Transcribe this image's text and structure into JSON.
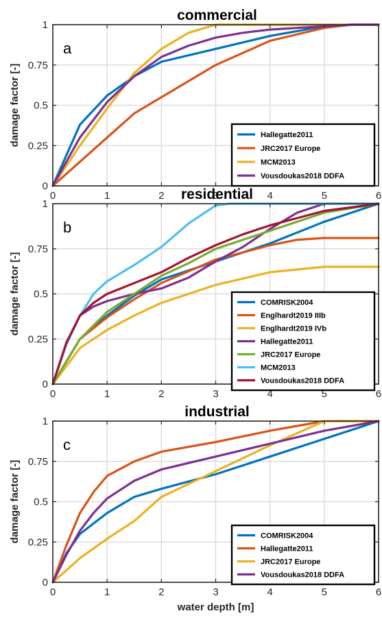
{
  "chart_data": [
    {
      "type": "line",
      "panel_label": "a",
      "title": "commercial",
      "ylabel": "damage factor [-]",
      "xlabel": "",
      "xlim": [
        0,
        6
      ],
      "ylim": [
        0,
        1
      ],
      "xticks": [
        "0",
        "1",
        "2",
        "3",
        "4",
        "5",
        "6"
      ],
      "yticks": [
        "0",
        "0.25",
        "0.5",
        "0.75",
        "1"
      ],
      "grid": true,
      "legend_position": "bottom-right",
      "series": [
        {
          "name": "Hallegatte2011",
          "color": "#0072BD",
          "x": [
            0,
            0.5,
            1,
            1.5,
            2,
            3,
            4,
            5,
            5.5,
            6
          ],
          "y": [
            0,
            0.38,
            0.56,
            0.68,
            0.77,
            0.85,
            0.93,
            0.99,
            1,
            1
          ]
        },
        {
          "name": "JRC2017 Europe",
          "color": "#D95319",
          "x": [
            0,
            0.5,
            1,
            1.5,
            2,
            2.5,
            3,
            4,
            5,
            5.5,
            6
          ],
          "y": [
            0,
            0.15,
            0.3,
            0.45,
            0.55,
            0.65,
            0.75,
            0.9,
            0.98,
            1,
            1
          ]
        },
        {
          "name": "MCM2013",
          "color": "#EDB120",
          "x": [
            0,
            0.5,
            1,
            1.5,
            2,
            2.5,
            3,
            3.5,
            4,
            5,
            6
          ],
          "y": [
            0,
            0.25,
            0.48,
            0.7,
            0.85,
            0.95,
            1,
            1,
            1,
            1,
            1
          ]
        },
        {
          "name": "Vousdoukas2018 DDFA",
          "color": "#7E2F8E",
          "x": [
            0,
            0.5,
            1,
            1.5,
            2,
            2.5,
            3,
            3.5,
            4,
            4.5,
            5,
            5.5,
            6
          ],
          "y": [
            0,
            0.3,
            0.52,
            0.68,
            0.8,
            0.87,
            0.92,
            0.95,
            0.97,
            0.98,
            0.99,
            1,
            1
          ]
        }
      ]
    },
    {
      "type": "line",
      "panel_label": "b",
      "title": "residential",
      "ylabel": "damage factor [-]",
      "xlabel": "",
      "xlim": [
        0,
        6
      ],
      "ylim": [
        0,
        1
      ],
      "xticks": [
        "0",
        "1",
        "2",
        "3",
        "4",
        "5",
        "6"
      ],
      "yticks": [
        "0",
        "0.25",
        "0.5",
        "0.75",
        "1"
      ],
      "grid": true,
      "legend_position": "bottom-right",
      "series": [
        {
          "name": "COMRISK2004",
          "color": "#0072BD",
          "x": [
            0,
            0.5,
            1,
            1.5,
            2,
            3,
            4,
            5,
            6
          ],
          "y": [
            0,
            0.25,
            0.38,
            0.49,
            0.58,
            0.68,
            0.78,
            0.9,
            1
          ]
        },
        {
          "name": "Englhardt2019 IIIb",
          "color": "#D95319",
          "x": [
            0,
            0.5,
            1,
            1.5,
            2,
            3,
            4,
            4.5,
            5,
            5.5,
            6
          ],
          "y": [
            0,
            0.25,
            0.37,
            0.47,
            0.56,
            0.69,
            0.77,
            0.8,
            0.81,
            0.81,
            0.81
          ]
        },
        {
          "name": "Englhardt2019 IVb",
          "color": "#EDB120",
          "x": [
            0,
            0.5,
            1,
            1.5,
            2,
            3,
            4,
            5,
            5.5,
            6
          ],
          "y": [
            0,
            0.2,
            0.3,
            0.38,
            0.45,
            0.55,
            0.62,
            0.65,
            0.65,
            0.65
          ]
        },
        {
          "name": "Hallegatte2011",
          "color": "#7E2F8E",
          "x": [
            0,
            0.25,
            0.5,
            0.75,
            1,
            1.5,
            2,
            2.5,
            3,
            3.5,
            4,
            4.5,
            5,
            5.5,
            6
          ],
          "y": [
            0,
            0.22,
            0.38,
            0.43,
            0.46,
            0.5,
            0.53,
            0.59,
            0.68,
            0.76,
            0.86,
            0.95,
            1,
            1,
            1
          ]
        },
        {
          "name": "JRC2017 Europe",
          "color": "#77AC30",
          "x": [
            0,
            0.5,
            1,
            1.5,
            2,
            2.5,
            3,
            4,
            5,
            6
          ],
          "y": [
            0,
            0.25,
            0.4,
            0.5,
            0.6,
            0.67,
            0.75,
            0.85,
            0.95,
            1
          ]
        },
        {
          "name": "MCM2013",
          "color": "#4DBEEE",
          "x": [
            0,
            0.25,
            0.5,
            0.75,
            1,
            1.5,
            2,
            2.5,
            3,
            3.25,
            4,
            5,
            6
          ],
          "y": [
            0,
            0.22,
            0.38,
            0.5,
            0.57,
            0.66,
            0.76,
            0.89,
            0.99,
            1,
            1,
            1,
            1
          ]
        },
        {
          "name": "Vousdoukas2018 DDFA",
          "color": "#A2142F",
          "x": [
            0,
            0.25,
            0.5,
            0.75,
            1,
            1.5,
            2,
            2.5,
            3,
            3.5,
            4,
            4.5,
            5,
            5.5,
            6
          ],
          "y": [
            0,
            0.23,
            0.38,
            0.45,
            0.5,
            0.56,
            0.62,
            0.7,
            0.77,
            0.83,
            0.88,
            0.92,
            0.96,
            0.98,
            1
          ]
        }
      ]
    },
    {
      "type": "line",
      "panel_label": "c",
      "title": "industrial",
      "ylabel": "damage factor [-]",
      "xlabel": "water depth [m]",
      "xlim": [
        0,
        6
      ],
      "ylim": [
        0,
        1
      ],
      "xticks": [
        "0",
        "1",
        "2",
        "3",
        "4",
        "5",
        "6"
      ],
      "yticks": [
        "0",
        "0.25",
        "0.5",
        "0.75",
        "1"
      ],
      "grid": true,
      "legend_position": "bottom-right",
      "series": [
        {
          "name": "COMRISK2004",
          "color": "#0072BD",
          "x": [
            0,
            0.25,
            0.5,
            1,
            1.5,
            2,
            3,
            4,
            5,
            6
          ],
          "y": [
            0,
            0.18,
            0.3,
            0.43,
            0.53,
            0.58,
            0.67,
            0.78,
            0.89,
            1
          ]
        },
        {
          "name": "Hallegatte2011",
          "color": "#D95319",
          "x": [
            0,
            0.25,
            0.5,
            0.75,
            1,
            1.5,
            2,
            3,
            4,
            4.5,
            5,
            5.5,
            6
          ],
          "y": [
            0,
            0.23,
            0.43,
            0.56,
            0.66,
            0.75,
            0.81,
            0.87,
            0.94,
            0.97,
            1,
            1,
            1
          ]
        },
        {
          "name": "JRC2017 Europe",
          "color": "#EDB120",
          "x": [
            0,
            0.5,
            1,
            1.5,
            2,
            3,
            4,
            5,
            6
          ],
          "y": [
            0,
            0.15,
            0.27,
            0.38,
            0.53,
            0.69,
            0.85,
            1,
            1
          ]
        },
        {
          "name": "Vousdoukas2018 DDFA",
          "color": "#7E2F8E",
          "x": [
            0,
            0.25,
            0.5,
            0.75,
            1,
            1.5,
            2,
            3,
            4,
            5,
            6
          ],
          "y": [
            0,
            0.17,
            0.32,
            0.43,
            0.52,
            0.63,
            0.7,
            0.78,
            0.86,
            0.94,
            1
          ]
        }
      ]
    }
  ]
}
